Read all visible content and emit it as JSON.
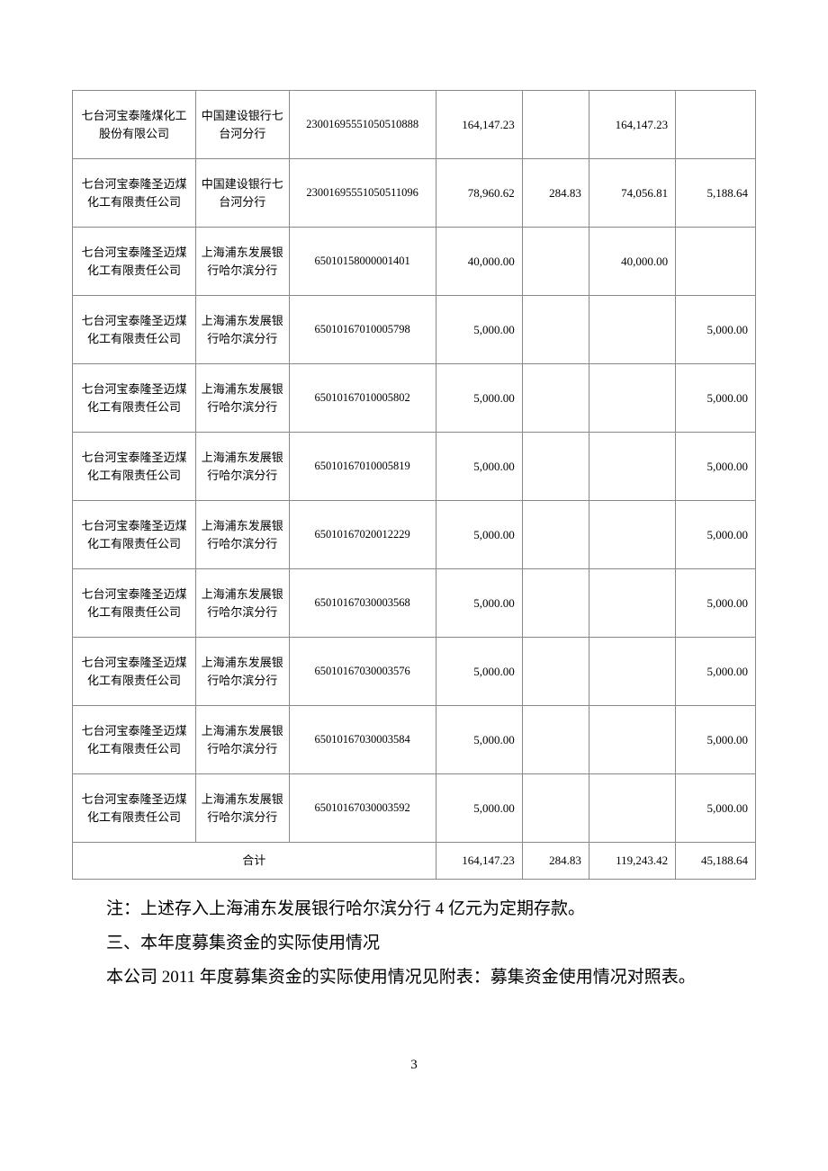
{
  "table": {
    "rows": [
      {
        "company": "七台河宝泰隆煤化工股份有限公司",
        "bank": "中国建设银行七台河分行",
        "account": "23001695551050510888",
        "c4": "164,147.23",
        "c5": "",
        "c6": "164,147.23",
        "c7": ""
      },
      {
        "company": "七台河宝泰隆圣迈煤化工有限责任公司",
        "bank": "中国建设银行七台河分行",
        "account": "23001695551050511096",
        "c4": "78,960.62",
        "c5": "284.83",
        "c6": "74,056.81",
        "c7": "5,188.64"
      },
      {
        "company": "七台河宝泰隆圣迈煤化工有限责任公司",
        "bank": "上海浦东发展银行哈尔滨分行",
        "account": "65010158000001401",
        "c4": "40,000.00",
        "c5": "",
        "c6": "40,000.00",
        "c7": ""
      },
      {
        "company": "七台河宝泰隆圣迈煤化工有限责任公司",
        "bank": "上海浦东发展银行哈尔滨分行",
        "account": "65010167010005798",
        "c4": "5,000.00",
        "c5": "",
        "c6": "",
        "c7": "5,000.00"
      },
      {
        "company": "七台河宝泰隆圣迈煤化工有限责任公司",
        "bank": "上海浦东发展银行哈尔滨分行",
        "account": "65010167010005802",
        "c4": "5,000.00",
        "c5": "",
        "c6": "",
        "c7": "5,000.00"
      },
      {
        "company": "七台河宝泰隆圣迈煤化工有限责任公司",
        "bank": "上海浦东发展银行哈尔滨分行",
        "account": "65010167010005819",
        "c4": "5,000.00",
        "c5": "",
        "c6": "",
        "c7": "5,000.00"
      },
      {
        "company": "七台河宝泰隆圣迈煤化工有限责任公司",
        "bank": "上海浦东发展银行哈尔滨分行",
        "account": "65010167020012229",
        "c4": "5,000.00",
        "c5": "",
        "c6": "",
        "c7": "5,000.00"
      },
      {
        "company": "七台河宝泰隆圣迈煤化工有限责任公司",
        "bank": "上海浦东发展银行哈尔滨分行",
        "account": "65010167030003568",
        "c4": "5,000.00",
        "c5": "",
        "c6": "",
        "c7": "5,000.00"
      },
      {
        "company": "七台河宝泰隆圣迈煤化工有限责任公司",
        "bank": "上海浦东发展银行哈尔滨分行",
        "account": "65010167030003576",
        "c4": "5,000.00",
        "c5": "",
        "c6": "",
        "c7": "5,000.00"
      },
      {
        "company": "七台河宝泰隆圣迈煤化工有限责任公司",
        "bank": "上海浦东发展银行哈尔滨分行",
        "account": "65010167030003584",
        "c4": "5,000.00",
        "c5": "",
        "c6": "",
        "c7": "5,000.00"
      },
      {
        "company": "七台河宝泰隆圣迈煤化工有限责任公司",
        "bank": "上海浦东发展银行哈尔滨分行",
        "account": "65010167030003592",
        "c4": "5,000.00",
        "c5": "",
        "c6": "",
        "c7": "5,000.00"
      }
    ],
    "total": {
      "label": "合计",
      "c4": "164,147.23",
      "c5": "284.83",
      "c6": "119,243.42",
      "c7": "45,188.64"
    }
  },
  "text": {
    "note": "注：上述存入上海浦东发展银行哈尔滨分行 4 亿元为定期存款。",
    "heading": "三、本年度募集资金的实际使用情况",
    "para": "本公司 2011 年度募集资金的实际使用情况见附表：募集资金使用情况对照表。"
  },
  "page_number": "3"
}
